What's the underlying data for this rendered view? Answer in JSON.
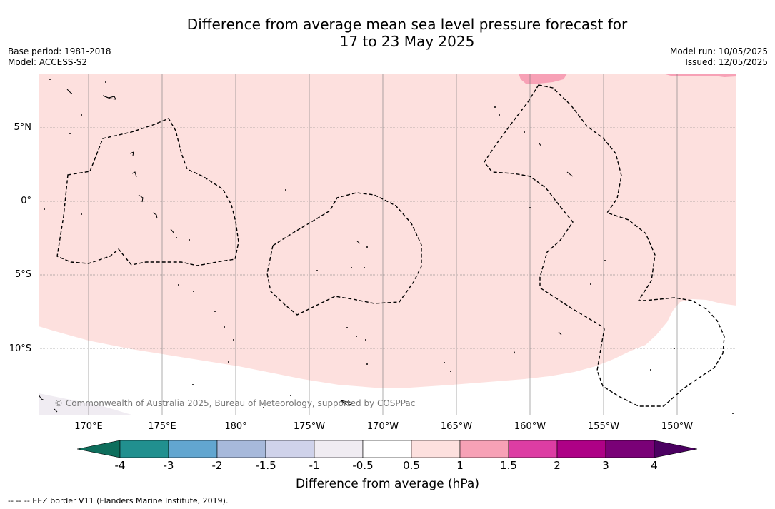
{
  "title_line1": "Difference from average mean sea level pressure forecast for",
  "title_line2": "17 to 23 May 2025",
  "base_period": "Base period: 1981-2018",
  "model": "Model: ACCESS-S2",
  "model_run": "Model run: 10/05/2025",
  "issued": "Issued: 12/05/2025",
  "lat_labels": [
    "5°N",
    "0°",
    "5°S",
    "10°S"
  ],
  "lon_labels": [
    "170°E",
    "175°E",
    "180°",
    "175°W",
    "170°W",
    "165°W",
    "160°W",
    "155°W",
    "150°W"
  ],
  "copyright": "© Commonwealth of Australia 2025, Bureau of Meteorology, supported by COSPPac",
  "colorbar": {
    "ticks": [
      "-4",
      "-3",
      "-2",
      "-1.5",
      "-1",
      "-0.5",
      "0.5",
      "1",
      "1.5",
      "2",
      "3",
      "4"
    ],
    "colors": [
      "#0e6e5c",
      "#21908f",
      "#62a6d0",
      "#a7b9db",
      "#cfd2ea",
      "#f0ecf2",
      "#ffffff",
      "#fde0de",
      "#f7a1b6",
      "#dd3da3",
      "#ae0186",
      "#7a0177",
      "#4b0061"
    ],
    "label": "Difference from average (hPa)"
  },
  "footnote": "--  --  -- EEZ border V11 (Flanders Marine Institute, 2019)."
}
